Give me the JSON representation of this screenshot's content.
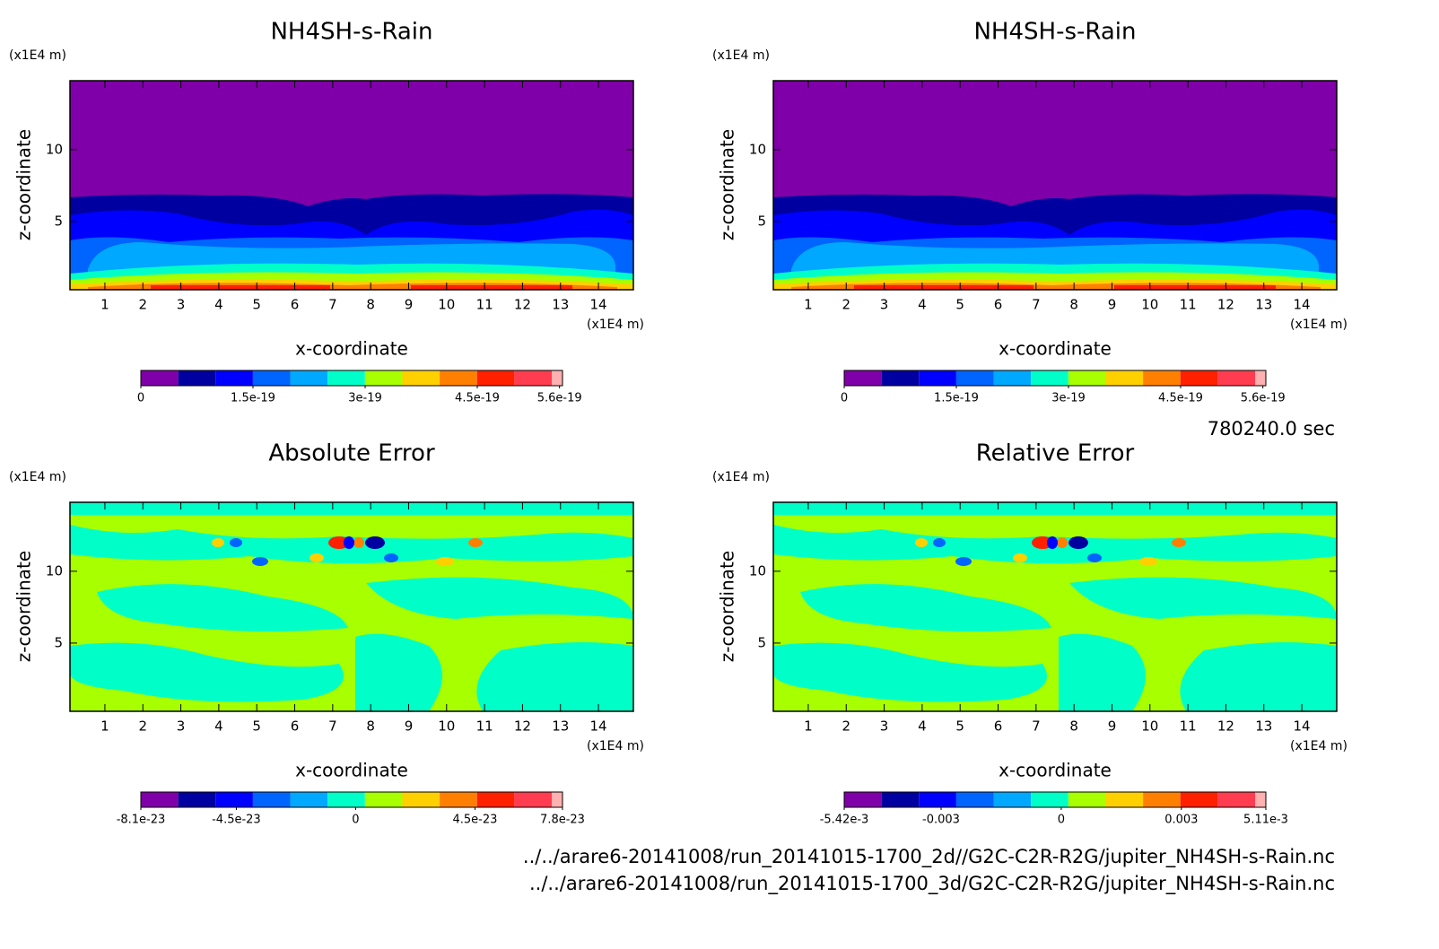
{
  "chart_data": [
    {
      "type": "contour",
      "title": "NH4SH-s-Rain",
      "x_label": "x-coordinate",
      "y_label": "z-coordinate",
      "x_unit": "(x1E4 m)",
      "y_unit": "(x1E4 m)",
      "xlim": [
        0.08,
        14.92
      ],
      "ylim": [
        0.25,
        14.8
      ],
      "xticks": [
        1,
        2,
        3,
        4,
        5,
        6,
        7,
        8,
        9,
        10,
        11,
        12,
        13,
        14
      ],
      "yticks": [
        5,
        10
      ],
      "colorbar": {
        "clim": [
          0,
          5.64e-19
        ],
        "ticks": [
          0,
          1.5e-19,
          3e-19,
          4.5e-19,
          5.6e-19
        ],
        "colors": [
          "#7f00a8",
          "#0000a0",
          "#0000ff",
          "#0064ff",
          "#00a8ff",
          "#00ffc8",
          "#a8ff00",
          "#ffd000",
          "#ff8000",
          "#ff2000",
          "#ff3c50",
          "#ffb0b0"
        ]
      }
    },
    {
      "type": "contour",
      "title": "NH4SH-s-Rain",
      "x_label": "x-coordinate",
      "y_label": "z-coordinate",
      "x_unit": "(x1E4 m)",
      "y_unit": "(x1E4 m)",
      "xlim": [
        0.08,
        14.92
      ],
      "ylim": [
        0.25,
        14.8
      ],
      "xticks": [
        1,
        2,
        3,
        4,
        5,
        6,
        7,
        8,
        9,
        10,
        11,
        12,
        13,
        14
      ],
      "yticks": [
        5,
        10
      ],
      "colorbar": {
        "clim": [
          0,
          5.64e-19
        ],
        "ticks": [
          0,
          1.5e-19,
          3e-19,
          4.5e-19,
          5.6e-19
        ],
        "colors": [
          "#7f00a8",
          "#0000a0",
          "#0000ff",
          "#0064ff",
          "#00a8ff",
          "#00ffc8",
          "#a8ff00",
          "#ffd000",
          "#ff8000",
          "#ff2000",
          "#ff3c50",
          "#ffb0b0"
        ]
      }
    },
    {
      "type": "contour",
      "title": "Absolute Error",
      "x_label": "x-coordinate",
      "y_label": "z-coordinate",
      "x_unit": "(x1E4 m)",
      "y_unit": "(x1E4 m)",
      "xlim": [
        0.08,
        14.92
      ],
      "ylim": [
        0.25,
        14.8
      ],
      "xticks": [
        1,
        2,
        3,
        4,
        5,
        6,
        7,
        8,
        9,
        10,
        11,
        12,
        13,
        14
      ],
      "yticks": [
        5,
        10
      ],
      "colorbar": {
        "clim": [
          -8.1e-23,
          7.8e-23
        ],
        "ticks": [
          -8.1e-23,
          -4.5e-23,
          0,
          4.5e-23,
          7.8e-23
        ],
        "colors": [
          "#7f00a8",
          "#0000a0",
          "#0000ff",
          "#0064ff",
          "#00a8ff",
          "#00ffc8",
          "#a8ff00",
          "#ffd000",
          "#ff8000",
          "#ff2000",
          "#ff3c50",
          "#ffb0b0"
        ]
      }
    },
    {
      "type": "contour",
      "title": "Relative Error",
      "x_label": "x-coordinate",
      "y_label": "z-coordinate",
      "x_unit": "(x1E4 m)",
      "y_unit": "(x1E4 m)",
      "xlim": [
        0.08,
        14.92
      ],
      "ylim": [
        0.25,
        14.8
      ],
      "xticks": [
        1,
        2,
        3,
        4,
        5,
        6,
        7,
        8,
        9,
        10,
        11,
        12,
        13,
        14
      ],
      "yticks": [
        5,
        10
      ],
      "colorbar": {
        "clim": [
          -0.00542,
          0.00511
        ],
        "ticks": [
          {
            "value": -0.00542,
            "label": "-5.42e-3"
          },
          -0.003,
          0,
          0.003,
          {
            "value": 0.00511,
            "label": "5.11e-3"
          }
        ],
        "colors": [
          "#7f00a8",
          "#0000a0",
          "#0000ff",
          "#0064ff",
          "#00a8ff",
          "#00ffc8",
          "#a8ff00",
          "#ffd000",
          "#ff8000",
          "#ff2000",
          "#ff3c50",
          "#ffb0b0"
        ]
      }
    }
  ],
  "time_label": "780240.0 sec",
  "files": [
    "../../arare6-20141008/run_20141015-1700_2d//G2C-C2R-R2G/jupiter_NH4SH-s-Rain.nc",
    "../../arare6-20141008/run_20141015-1700_3d/G2C-C2R-R2G/jupiter_NH4SH-s-Rain.nc"
  ]
}
